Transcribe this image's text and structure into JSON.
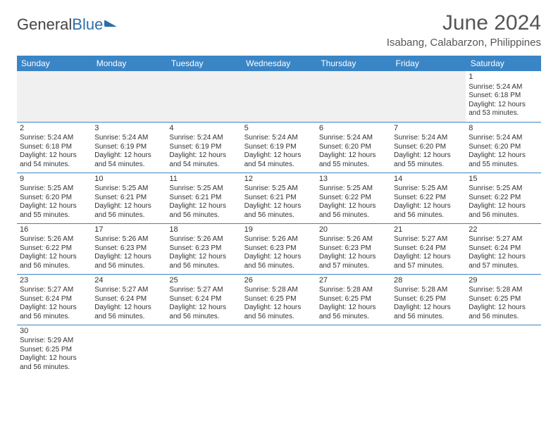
{
  "brand": {
    "part1": "General",
    "part2": "Blue"
  },
  "title": "June 2024",
  "location": "Isabang, Calabarzon, Philippines",
  "colors": {
    "header_bg": "#3a85c6",
    "header_text": "#ffffff",
    "border": "#3a85c6",
    "text": "#333333",
    "brand_blue": "#2d6fa8"
  },
  "weekdays": [
    "Sunday",
    "Monday",
    "Tuesday",
    "Wednesday",
    "Thursday",
    "Friday",
    "Saturday"
  ],
  "calendar": {
    "type": "table",
    "columns": 7,
    "rows": [
      [
        null,
        null,
        null,
        null,
        null,
        null,
        {
          "n": "1",
          "sr": "5:24 AM",
          "ss": "6:18 PM",
          "dl": "12 hours and 53 minutes."
        }
      ],
      [
        {
          "n": "2",
          "sr": "5:24 AM",
          "ss": "6:18 PM",
          "dl": "12 hours and 54 minutes."
        },
        {
          "n": "3",
          "sr": "5:24 AM",
          "ss": "6:19 PM",
          "dl": "12 hours and 54 minutes."
        },
        {
          "n": "4",
          "sr": "5:24 AM",
          "ss": "6:19 PM",
          "dl": "12 hours and 54 minutes."
        },
        {
          "n": "5",
          "sr": "5:24 AM",
          "ss": "6:19 PM",
          "dl": "12 hours and 54 minutes."
        },
        {
          "n": "6",
          "sr": "5:24 AM",
          "ss": "6:20 PM",
          "dl": "12 hours and 55 minutes."
        },
        {
          "n": "7",
          "sr": "5:24 AM",
          "ss": "6:20 PM",
          "dl": "12 hours and 55 minutes."
        },
        {
          "n": "8",
          "sr": "5:24 AM",
          "ss": "6:20 PM",
          "dl": "12 hours and 55 minutes."
        }
      ],
      [
        {
          "n": "9",
          "sr": "5:25 AM",
          "ss": "6:20 PM",
          "dl": "12 hours and 55 minutes."
        },
        {
          "n": "10",
          "sr": "5:25 AM",
          "ss": "6:21 PM",
          "dl": "12 hours and 56 minutes."
        },
        {
          "n": "11",
          "sr": "5:25 AM",
          "ss": "6:21 PM",
          "dl": "12 hours and 56 minutes."
        },
        {
          "n": "12",
          "sr": "5:25 AM",
          "ss": "6:21 PM",
          "dl": "12 hours and 56 minutes."
        },
        {
          "n": "13",
          "sr": "5:25 AM",
          "ss": "6:22 PM",
          "dl": "12 hours and 56 minutes."
        },
        {
          "n": "14",
          "sr": "5:25 AM",
          "ss": "6:22 PM",
          "dl": "12 hours and 56 minutes."
        },
        {
          "n": "15",
          "sr": "5:25 AM",
          "ss": "6:22 PM",
          "dl": "12 hours and 56 minutes."
        }
      ],
      [
        {
          "n": "16",
          "sr": "5:26 AM",
          "ss": "6:22 PM",
          "dl": "12 hours and 56 minutes."
        },
        {
          "n": "17",
          "sr": "5:26 AM",
          "ss": "6:23 PM",
          "dl": "12 hours and 56 minutes."
        },
        {
          "n": "18",
          "sr": "5:26 AM",
          "ss": "6:23 PM",
          "dl": "12 hours and 56 minutes."
        },
        {
          "n": "19",
          "sr": "5:26 AM",
          "ss": "6:23 PM",
          "dl": "12 hours and 56 minutes."
        },
        {
          "n": "20",
          "sr": "5:26 AM",
          "ss": "6:23 PM",
          "dl": "12 hours and 57 minutes."
        },
        {
          "n": "21",
          "sr": "5:27 AM",
          "ss": "6:24 PM",
          "dl": "12 hours and 57 minutes."
        },
        {
          "n": "22",
          "sr": "5:27 AM",
          "ss": "6:24 PM",
          "dl": "12 hours and 57 minutes."
        }
      ],
      [
        {
          "n": "23",
          "sr": "5:27 AM",
          "ss": "6:24 PM",
          "dl": "12 hours and 56 minutes."
        },
        {
          "n": "24",
          "sr": "5:27 AM",
          "ss": "6:24 PM",
          "dl": "12 hours and 56 minutes."
        },
        {
          "n": "25",
          "sr": "5:27 AM",
          "ss": "6:24 PM",
          "dl": "12 hours and 56 minutes."
        },
        {
          "n": "26",
          "sr": "5:28 AM",
          "ss": "6:25 PM",
          "dl": "12 hours and 56 minutes."
        },
        {
          "n": "27",
          "sr": "5:28 AM",
          "ss": "6:25 PM",
          "dl": "12 hours and 56 minutes."
        },
        {
          "n": "28",
          "sr": "5:28 AM",
          "ss": "6:25 PM",
          "dl": "12 hours and 56 minutes."
        },
        {
          "n": "29",
          "sr": "5:28 AM",
          "ss": "6:25 PM",
          "dl": "12 hours and 56 minutes."
        }
      ],
      [
        {
          "n": "30",
          "sr": "5:29 AM",
          "ss": "6:25 PM",
          "dl": "12 hours and 56 minutes."
        },
        null,
        null,
        null,
        null,
        null,
        null
      ]
    ],
    "labels": {
      "sunrise": "Sunrise:",
      "sunset": "Sunset:",
      "daylight": "Daylight:"
    }
  }
}
